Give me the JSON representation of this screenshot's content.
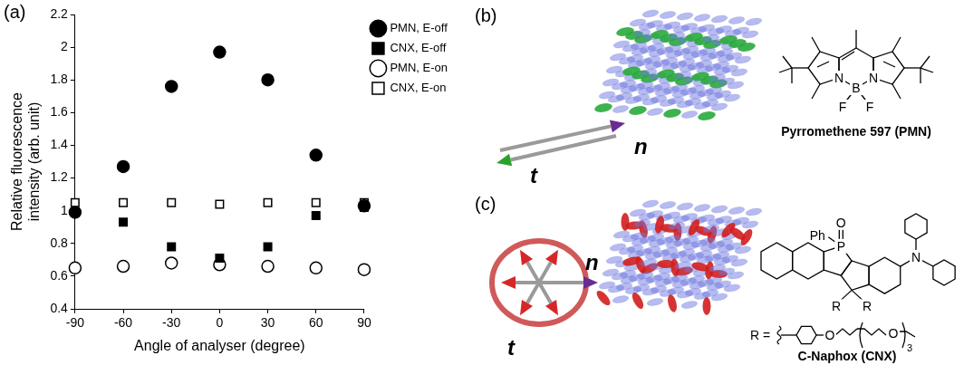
{
  "chart_data": {
    "type": "scatter",
    "panel_label": "(a)",
    "x_label": "Angle of analyser (degree)",
    "y_label": "Relative fluorescence intensity (arb. unit)",
    "x": [
      -90,
      -60,
      -30,
      0,
      30,
      60,
      90
    ],
    "series": [
      {
        "name": "PMN, E-off",
        "color": "#000000",
        "marker": "circle",
        "values": [
          0.99,
          1.27,
          1.76,
          1.97,
          1.8,
          1.34,
          1.03
        ]
      },
      {
        "name": "CNX, E-off",
        "color": "#000000",
        "marker": "square",
        "values": [
          0.99,
          0.93,
          0.78,
          0.71,
          0.78,
          0.97,
          1.02
        ]
      },
      {
        "name": "PMN, E-on",
        "color": "#000000",
        "marker": "open_circle",
        "values": [
          0.65,
          0.66,
          0.68,
          0.67,
          0.66,
          0.65,
          0.64
        ]
      },
      {
        "name": "CNX, E-on",
        "color": "#000000",
        "marker": "open_square",
        "values": [
          1.05,
          1.05,
          1.05,
          1.04,
          1.05,
          1.05,
          1.05
        ]
      }
    ],
    "xlim": [
      -90,
      90
    ],
    "xticks": [
      -90,
      -60,
      -30,
      0,
      30,
      60,
      90
    ],
    "ylim": [
      0.4,
      2.2
    ],
    "yticks": [
      0.4,
      0.6,
      0.8,
      1,
      1.2,
      1.4,
      1.6,
      1.8,
      2,
      2.2
    ],
    "grid": false,
    "legend": "right"
  },
  "diagrams": [
    {
      "panel_label": "(b)",
      "vectors": [
        "t",
        "n"
      ],
      "molecule": {
        "name": "Pyrromethene 597 (PMN)",
        "atoms": [
          "N",
          "N",
          "B",
          "F",
          "F"
        ]
      }
    },
    {
      "panel_label": "(c)",
      "vectors": [
        "t",
        "n"
      ],
      "molecule": {
        "name": "C-Naphox (CNX)",
        "atoms": [
          "O",
          "P",
          "Ph",
          "N",
          "R",
          "R"
        ],
        "substituent": {
          "label": "R =",
          "atoms": [
            "O",
            "O"
          ],
          "repeat": 3
        }
      }
    }
  ]
}
